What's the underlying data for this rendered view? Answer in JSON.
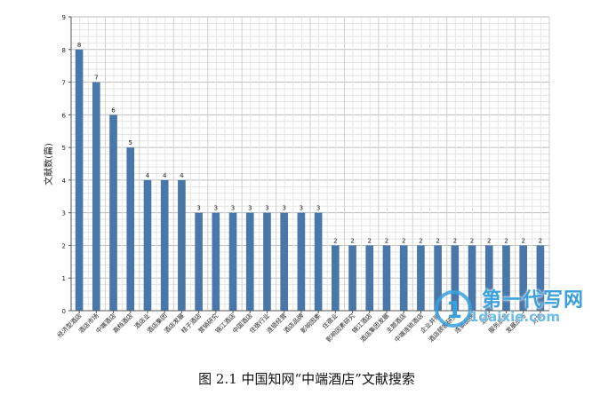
{
  "caption": "图 2.1  中国知网“中端酒店”文献搜索",
  "watermark": {
    "text": "第一代写网",
    "url": "1daixie.com"
  },
  "colors": {
    "bar": "#4a77a9",
    "grid": "#cfcfcf",
    "axis": "#555555",
    "text": "#222222"
  },
  "chart_data": {
    "type": "bar",
    "title": "",
    "xlabel": "",
    "ylabel": "文献数(篇)",
    "ylim": [
      0,
      9
    ],
    "yticks": [
      0,
      1,
      2,
      3,
      4,
      5,
      6,
      7,
      8,
      9
    ],
    "grid": true,
    "categories": [
      "经济型酒店",
      "酒店市场",
      "中端酒店",
      "高档酒店",
      "酒店业",
      "酒店集团",
      "酒店发展",
      "桔子酒店",
      "营销研究",
      "锦江酒店",
      "中国酒店",
      "住宿行业",
      "连锁经营",
      "酒店品牌",
      "影响因素",
      "住宿业",
      "影响因素研究",
      "锦江酒店",
      "酒店集团发展",
      "主题酒店",
      "中端连锁酒店",
      "企业并购",
      "酒店顾客研究",
      "连锁品牌",
      "酒店",
      "服务质量",
      "发展战略",
      "对策"
    ],
    "values": [
      8,
      7,
      6,
      5,
      4,
      4,
      4,
      3,
      3,
      3,
      3,
      3,
      3,
      3,
      3,
      2,
      2,
      2,
      2,
      2,
      2,
      2,
      2,
      2,
      2,
      2,
      2,
      2
    ]
  }
}
